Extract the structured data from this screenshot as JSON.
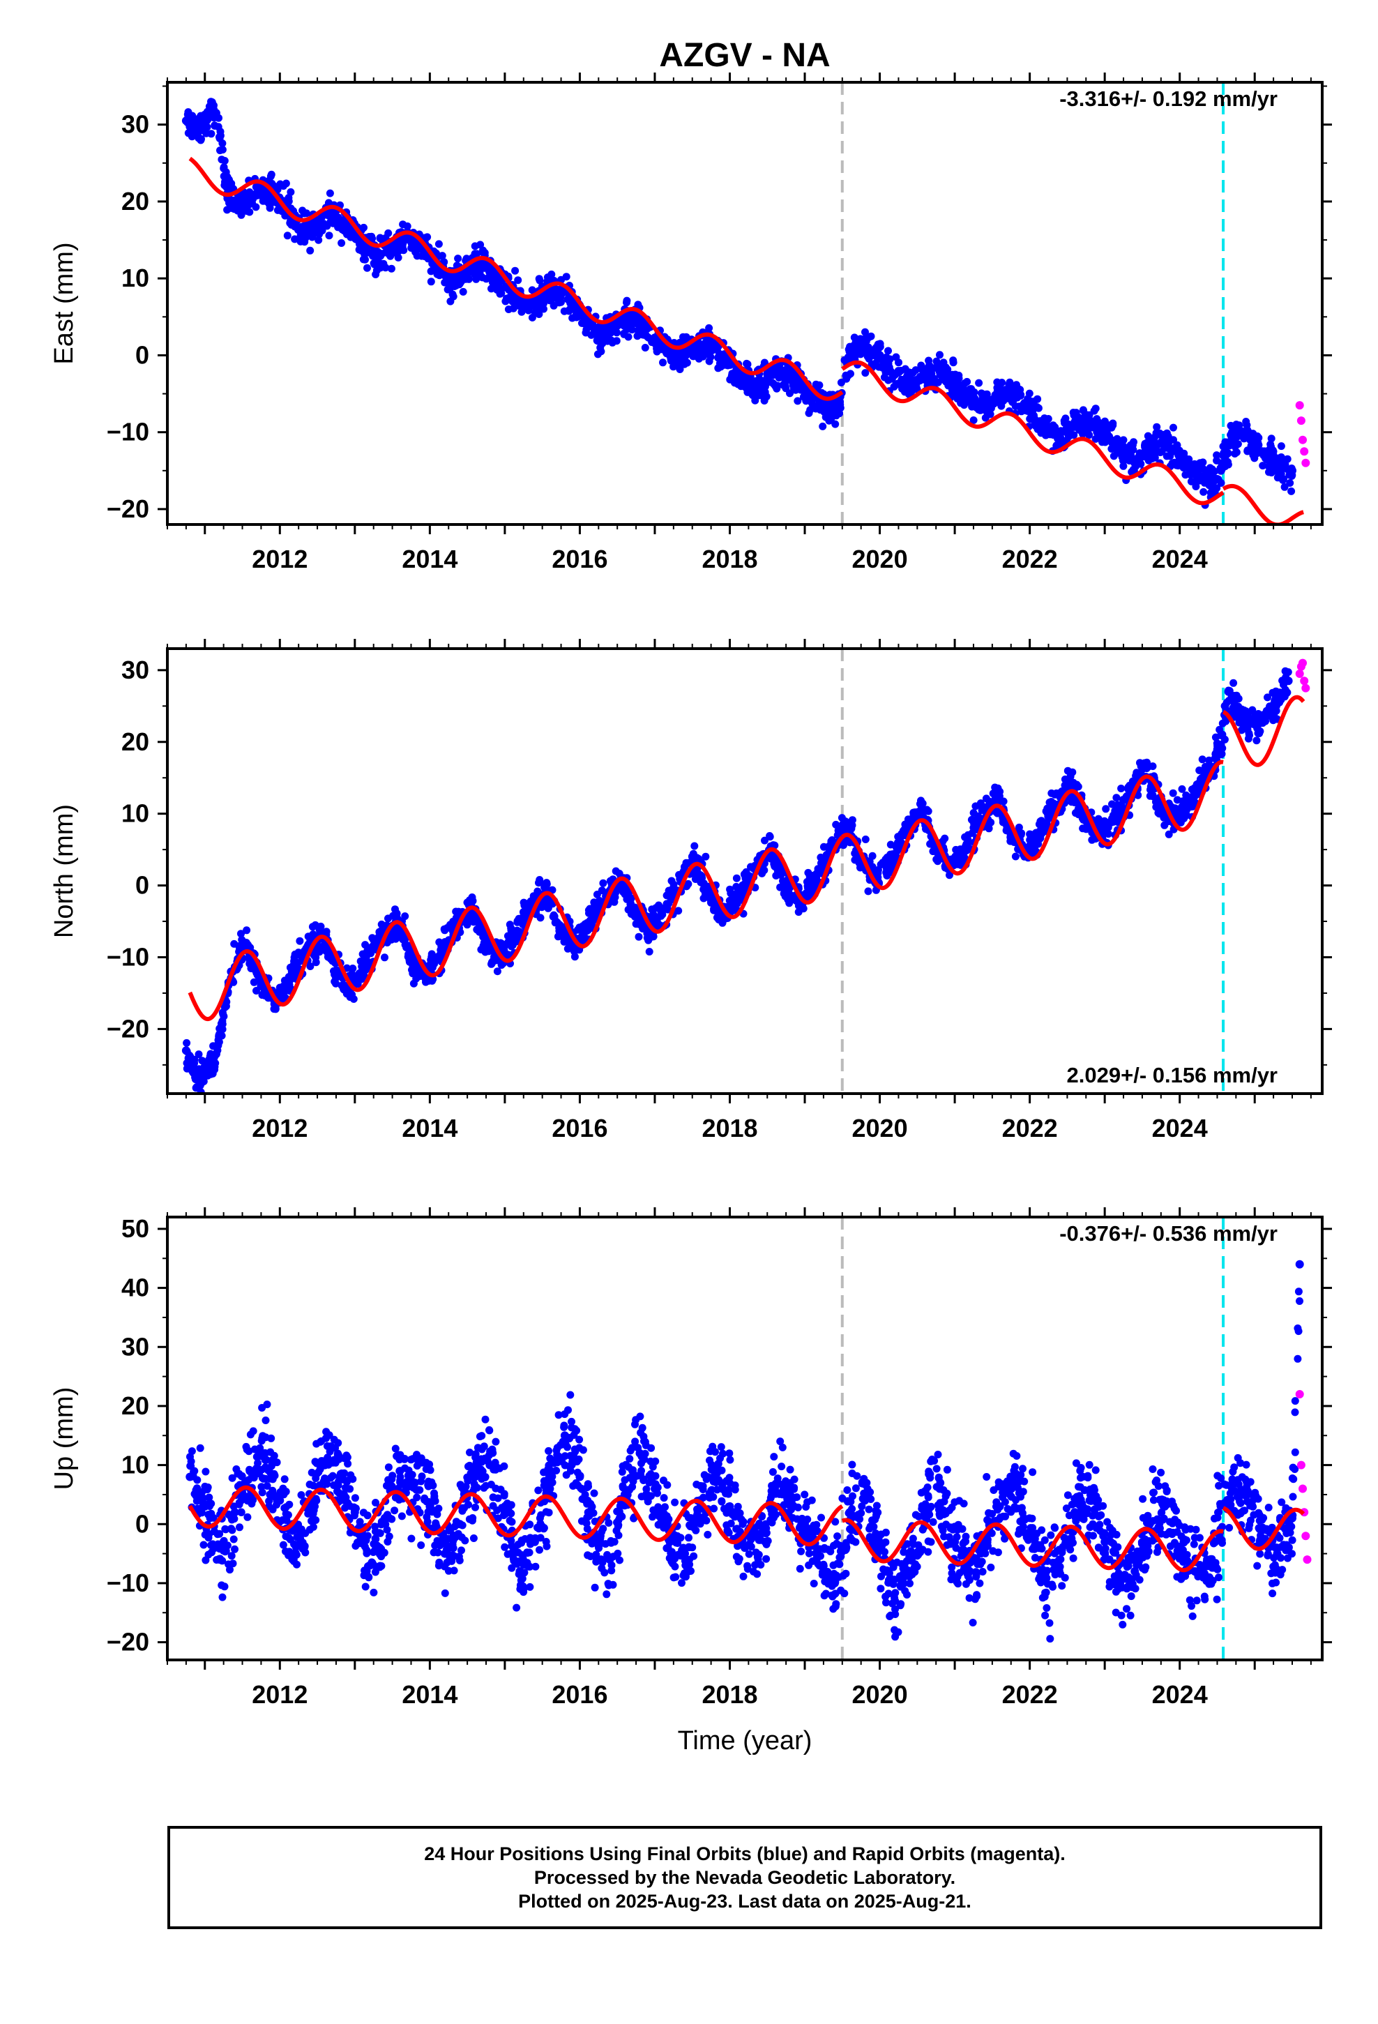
{
  "title": "AZGV - NA",
  "colors": {
    "final": "#0000ff",
    "rapid": "#ff00ff",
    "model": "#ff0000",
    "gray_event": "#bbbbbb",
    "cyan_event": "#00e5ee"
  },
  "x_axis": {
    "label": "Time (year)",
    "range": [
      2010.5,
      2025.9
    ],
    "ticks": [
      2012,
      2014,
      2016,
      2018,
      2020,
      2022,
      2024
    ],
    "tick_labels": [
      "2012",
      "2014",
      "2016",
      "2018",
      "2020",
      "2022",
      "2024"
    ]
  },
  "events": {
    "gray": 2019.5,
    "cyan": 2024.58
  },
  "footer": {
    "line1": "24 Hour Positions Using Final Orbits (blue) and Rapid Orbits (magenta).",
    "line2": "Processed by the Nevada Geodetic Laboratory.",
    "line3": "Plotted on 2025-Aug-23. Last data on 2025-Aug-21."
  },
  "chart_data": [
    {
      "type": "scatter",
      "component": "east",
      "ylabel": "East (mm)",
      "rate_label": "-3.316+/- 0.192 mm/yr",
      "rate_position": "top-right",
      "ylim": [
        -22,
        35.5
      ],
      "y_ticks": [
        -20,
        -10,
        0,
        10,
        20,
        30
      ],
      "y_tick_labels": [
        "-20",
        "-10",
        "0",
        "10",
        "20",
        "30"
      ],
      "model": {
        "segments": [
          [
            2010.8,
            2019.5
          ],
          [
            2019.5,
            2024.58
          ],
          [
            2024.58,
            2025.65
          ]
        ],
        "trend": {
          "t0": 2011.0,
          "y0": 23.4,
          "rate": -3.316
        },
        "offsets": [
          0,
          3.0,
          3.5
        ],
        "seasonal_amplitude": 1.6,
        "seasonal_phase": 2011.75
      },
      "series": [
        {
          "orbit": "final",
          "x": [
            2010.75,
            2010.85,
            2010.95,
            2011.05,
            2011.15,
            2011.3,
            2011.5,
            2011.7,
            2011.9,
            2012.1,
            2012.3,
            2012.5,
            2012.7,
            2012.9,
            2013.1,
            2013.3,
            2013.5,
            2013.7,
            2013.9,
            2014.1,
            2014.3,
            2014.5,
            2014.7,
            2014.9,
            2015.1,
            2015.3,
            2015.5,
            2015.7,
            2015.9,
            2016.1,
            2016.3,
            2016.5,
            2016.7,
            2016.9,
            2017.1,
            2017.3,
            2017.5,
            2017.7,
            2017.9,
            2018.1,
            2018.3,
            2018.5,
            2018.7,
            2018.9,
            2019.1,
            2019.3,
            2019.45,
            2019.6,
            2019.8,
            2020.0,
            2020.2,
            2020.4,
            2020.6,
            2020.8,
            2021.0,
            2021.2,
            2021.4,
            2021.6,
            2021.8,
            2022.0,
            2022.2,
            2022.4,
            2022.6,
            2022.8,
            2023.0,
            2023.2,
            2023.4,
            2023.6,
            2023.8,
            2024.0,
            2024.2,
            2024.4,
            2024.55,
            2024.7,
            2024.9,
            2025.1,
            2025.3,
            2025.5
          ],
          "y": [
            30.5,
            30.0,
            29.8,
            31.2,
            31.5,
            21.0,
            19.5,
            21.8,
            21.5,
            19.2,
            16.0,
            16.5,
            18.5,
            17.0,
            14.5,
            12.5,
            14.0,
            15.5,
            14.0,
            11.5,
            9.5,
            11.2,
            12.0,
            10.0,
            8.0,
            6.5,
            7.8,
            8.5,
            7.0,
            4.5,
            2.5,
            4.0,
            5.0,
            3.5,
            1.0,
            -0.5,
            1.0,
            1.5,
            0.0,
            -2.5,
            -4.0,
            -3.0,
            -2.0,
            -3.5,
            -5.5,
            -7.0,
            -6.5,
            0.5,
            1.2,
            0.0,
            -2.5,
            -4.0,
            -3.0,
            -2.0,
            -3.5,
            -5.5,
            -7.0,
            -5.5,
            -5.0,
            -7.0,
            -9.5,
            -11.0,
            -9.0,
            -8.5,
            -10.0,
            -12.5,
            -14.0,
            -12.5,
            -11.5,
            -13.5,
            -15.0,
            -16.5,
            -15.0,
            -10.0,
            -10.5,
            -12.5,
            -14.0,
            -15.0
          ]
        },
        {
          "orbit": "rapid",
          "x": [
            2025.6,
            2025.62,
            2025.64,
            2025.66,
            2025.68
          ],
          "y": [
            -6.5,
            -8.5,
            -11.0,
            -12.5,
            -14.0
          ]
        }
      ]
    },
    {
      "type": "scatter",
      "component": "north",
      "ylabel": "North (mm)",
      "rate_label": "2.029+/- 0.156 mm/yr",
      "rate_position": "bottom-right",
      "ylim": [
        -29,
        33
      ],
      "y_ticks": [
        -20,
        -10,
        0,
        10,
        20,
        30
      ],
      "y_tick_labels": [
        "-20",
        "-10",
        "0",
        "10",
        "20",
        "30"
      ],
      "model": {
        "segments": [
          [
            2010.8,
            2019.5
          ],
          [
            2019.5,
            2024.58
          ],
          [
            2024.58,
            2025.65
          ]
        ],
        "trend": {
          "t0": 2011.0,
          "y0": -14.5,
          "rate": 2.029
        },
        "offsets": [
          0,
          0,
          7.0
        ],
        "seasonal_amplitude": 4.2,
        "seasonal_phase": 2011.55
      },
      "series": [
        {
          "orbit": "final",
          "x": [
            2010.75,
            2010.85,
            2010.95,
            2011.05,
            2011.15,
            2011.35,
            2011.55,
            2011.75,
            2011.95,
            2012.15,
            2012.35,
            2012.55,
            2012.75,
            2012.95,
            2013.15,
            2013.35,
            2013.55,
            2013.75,
            2013.95,
            2014.15,
            2014.35,
            2014.55,
            2014.75,
            2014.95,
            2015.15,
            2015.35,
            2015.55,
            2015.75,
            2015.95,
            2016.15,
            2016.35,
            2016.55,
            2016.75,
            2016.95,
            2017.15,
            2017.35,
            2017.55,
            2017.75,
            2017.95,
            2018.15,
            2018.35,
            2018.55,
            2018.75,
            2018.95,
            2019.15,
            2019.35,
            2019.55,
            2019.75,
            2019.95,
            2020.15,
            2020.35,
            2020.55,
            2020.75,
            2020.95,
            2021.15,
            2021.35,
            2021.55,
            2021.75,
            2021.95,
            2022.15,
            2022.35,
            2022.55,
            2022.75,
            2022.95,
            2023.15,
            2023.35,
            2023.55,
            2023.75,
            2023.95,
            2024.15,
            2024.35,
            2024.55,
            2024.65,
            2024.85,
            2025.05,
            2025.25,
            2025.45
          ],
          "y": [
            -23.0,
            -26.0,
            -27.0,
            -25.0,
            -23.5,
            -12.0,
            -8.0,
            -14.0,
            -16.0,
            -13.0,
            -9.0,
            -6.5,
            -12.0,
            -14.0,
            -11.0,
            -7.5,
            -5.0,
            -10.5,
            -12.5,
            -9.5,
            -5.5,
            -3.0,
            -8.0,
            -10.0,
            -7.0,
            -3.0,
            -1.0,
            -6.0,
            -8.5,
            -5.0,
            -1.5,
            1.0,
            -4.0,
            -6.0,
            -3.0,
            0.5,
            3.0,
            -2.0,
            -4.0,
            -1.0,
            2.5,
            5.0,
            0.0,
            -2.0,
            1.0,
            5.0,
            8.5,
            3.5,
            1.0,
            3.5,
            7.0,
            10.5,
            5.0,
            3.0,
            5.5,
            9.0,
            12.0,
            7.0,
            5.0,
            7.5,
            11.0,
            14.0,
            9.0,
            7.0,
            9.5,
            13.0,
            16.5,
            11.0,
            9.5,
            12.0,
            15.5,
            19.0,
            27.0,
            23.0,
            22.5,
            25.0,
            28.5
          ]
        },
        {
          "orbit": "rapid",
          "x": [
            2025.6,
            2025.62,
            2025.64,
            2025.66,
            2025.68
          ],
          "y": [
            29.5,
            30.5,
            31.0,
            28.5,
            27.5
          ]
        }
      ]
    },
    {
      "type": "scatter",
      "component": "up",
      "ylabel": "Up (mm)",
      "rate_label": "-0.376+/- 0.536 mm/yr",
      "rate_position": "top-right",
      "ylim": [
        -23,
        52
      ],
      "y_ticks": [
        -20,
        -10,
        0,
        10,
        20,
        30,
        40,
        50
      ],
      "y_tick_labels": [
        "-20",
        "-10",
        "0",
        "10",
        "20",
        "30",
        "40",
        "50"
      ],
      "model": {
        "segments": [
          [
            2010.8,
            2019.5
          ],
          [
            2019.5,
            2024.58
          ],
          [
            2024.58,
            2025.65
          ]
        ],
        "trend": {
          "t0": 2011.0,
          "y0": 3.0,
          "rate": -0.376
        },
        "offsets": [
          0,
          -2.5,
          1.5
        ],
        "seasonal_amplitude": 3.4,
        "seasonal_phase": 2010.55
      },
      "series": [
        {
          "orbit": "final",
          "x": [
            2010.8,
            2011.0,
            2011.2,
            2011.4,
            2011.6,
            2011.8,
            2012.0,
            2012.2,
            2012.4,
            2012.6,
            2012.8,
            2013.0,
            2013.2,
            2013.4,
            2013.6,
            2013.8,
            2014.0,
            2014.2,
            2014.4,
            2014.6,
            2014.8,
            2015.0,
            2015.2,
            2015.4,
            2015.6,
            2015.8,
            2016.0,
            2016.2,
            2016.4,
            2016.6,
            2016.8,
            2017.0,
            2017.2,
            2017.4,
            2017.6,
            2017.8,
            2018.0,
            2018.2,
            2018.4,
            2018.6,
            2018.8,
            2019.0,
            2019.2,
            2019.4,
            2019.6,
            2019.8,
            2020.0,
            2020.2,
            2020.4,
            2020.6,
            2020.8,
            2021.0,
            2021.2,
            2021.4,
            2021.6,
            2021.8,
            2022.0,
            2022.2,
            2022.4,
            2022.6,
            2022.8,
            2023.0,
            2023.2,
            2023.4,
            2023.6,
            2023.8,
            2024.0,
            2024.2,
            2024.4,
            2024.7,
            2024.9,
            2025.1,
            2025.3,
            2025.5,
            2025.6
          ],
          "y": [
            8.0,
            3.0,
            -6.0,
            2.0,
            9.0,
            12.0,
            4.0,
            -5.0,
            3.0,
            10.0,
            8.0,
            2.0,
            -7.0,
            1.0,
            9.0,
            7.0,
            3.0,
            -5.0,
            0.0,
            8.0,
            10.0,
            2.0,
            -8.0,
            -3.0,
            6.0,
            15.0,
            8.0,
            -2.0,
            -6.0,
            5.0,
            12.0,
            6.0,
            -3.0,
            -5.0,
            4.0,
            8.0,
            3.0,
            -4.0,
            -2.0,
            6.0,
            5.0,
            0.0,
            -7.0,
            -10.0,
            2.0,
            4.0,
            -4.0,
            -13.0,
            -8.0,
            2.0,
            6.0,
            -3.0,
            -8.0,
            -4.0,
            3.0,
            7.0,
            -2.0,
            -9.0,
            -6.0,
            2.0,
            4.0,
            -3.0,
            -10.0,
            -8.0,
            0.0,
            3.0,
            -4.0,
            -8.0,
            -7.0,
            6.0,
            5.0,
            -1.0,
            -5.0,
            1.0,
            44.0
          ]
        },
        {
          "orbit": "rapid",
          "x": [
            2025.6,
            2025.62,
            2025.64,
            2025.66,
            2025.68,
            2025.7
          ],
          "y": [
            22.0,
            10.0,
            6.0,
            2.0,
            -2.0,
            -6.0
          ]
        }
      ]
    }
  ]
}
